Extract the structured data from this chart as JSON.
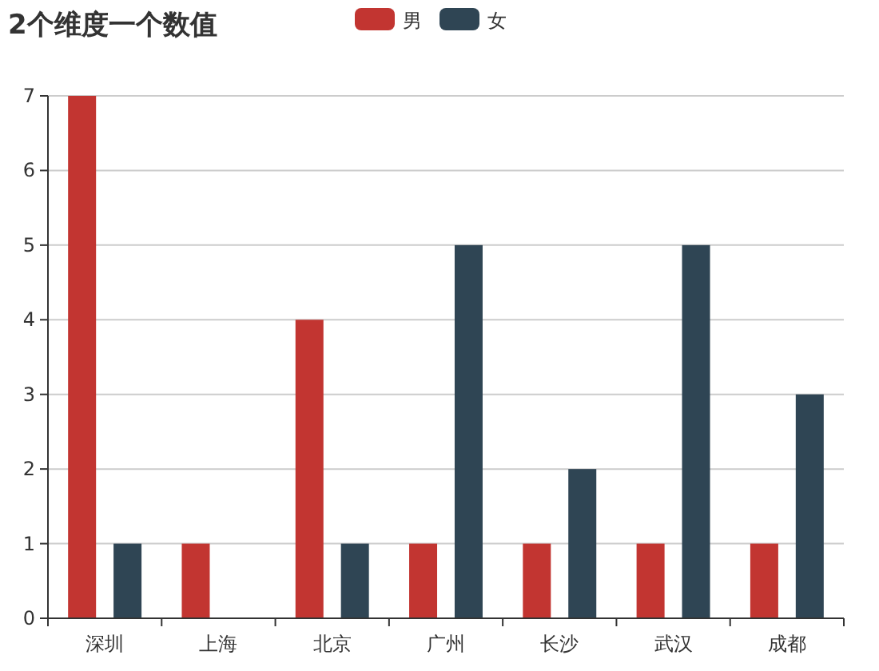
{
  "chart_data": {
    "type": "bar",
    "title": "2个维度一个数值",
    "categories": [
      "深圳",
      "上海",
      "北京",
      "广州",
      "长沙",
      "武汉",
      "成都"
    ],
    "series": [
      {
        "name": "男",
        "color": "#c23531",
        "values": [
          7,
          1,
          4,
          1,
          1,
          1,
          1
        ]
      },
      {
        "name": "女",
        "color": "#2f4554",
        "values": [
          1,
          0,
          1,
          5,
          2,
          5,
          3
        ]
      }
    ],
    "ylim": [
      0,
      7
    ],
    "yticks": [
      0,
      1,
      2,
      3,
      4,
      5,
      6,
      7
    ],
    "grid": "y",
    "legend": "top"
  }
}
